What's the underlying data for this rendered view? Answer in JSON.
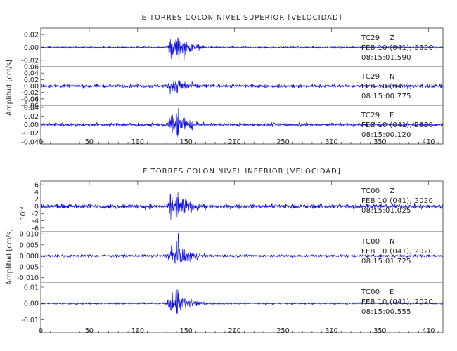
{
  "chart_data": [
    {
      "type": "line",
      "title": "E TORRES COLON NIVEL SUPERIOR [VELOCIDAD]",
      "ylabel": "Amplitud [cm/s]",
      "xlim": [
        0,
        415
      ],
      "xticks": [
        "0",
        "50",
        "100",
        "150",
        "200",
        "250",
        "300",
        "350",
        "400"
      ],
      "series": [
        {
          "station": "TC29",
          "component": "Z",
          "date": "FEB 10 (041), 2020",
          "time": "08:15:01.590",
          "ylim": [
            -0.03,
            0.03
          ],
          "yticks": [
            "0.02",
            "0.00",
            "-0.02"
          ],
          "event_start": 128,
          "peak_time": 142,
          "peak_amplitude": 0.028,
          "noise_amplitude": 0.002
        },
        {
          "station": "TC29",
          "component": "N",
          "date": "FEB 10 (041), 2020",
          "time": "08:15:00.775",
          "ylim": [
            -0.06,
            0.06
          ],
          "yticks": [
            "0.06",
            "0.04",
            "0.02",
            "0.00",
            "-0.02",
            "-0.04",
            "-0.06"
          ],
          "event_start": 128,
          "peak_time": 142,
          "peak_amplitude": 0.045,
          "noise_amplitude": 0.008
        },
        {
          "station": "TC29",
          "component": "E",
          "date": "FEB 10 (041), 2020",
          "time": "08:15:00.120",
          "ylim": [
            -0.045,
            0.045
          ],
          "yticks": [
            "0.06",
            "0.04",
            "0.02",
            "0.00",
            "-0.02",
            "-0.04"
          ],
          "event_start": 128,
          "peak_time": 142,
          "peak_amplitude": 0.042,
          "noise_amplitude": 0.006
        }
      ]
    },
    {
      "type": "line",
      "title": "E TORRES COLON NIVEL INFERIOR [VELOCIDAD]",
      "ylabel": "Amplitud [cm/s]",
      "yscale_label": "10^-3",
      "xlim": [
        0,
        415
      ],
      "xticks": [
        "0",
        "50",
        "100",
        "150",
        "200",
        "250",
        "300",
        "350",
        "400"
      ],
      "series": [
        {
          "station": "TC00",
          "component": "Z",
          "date": "FEB 10 (041), 2020",
          "time": "08:15:01.025",
          "ylim": [
            -7,
            7
          ],
          "yticks": [
            "6",
            "4",
            "2",
            "0",
            "-2",
            "-4",
            "-6"
          ],
          "event_start": 128,
          "peak_time": 142,
          "peak_amplitude": 6,
          "noise_amplitude": 1
        },
        {
          "station": "TC00",
          "component": "N",
          "date": "FEB 10 (041), 2020",
          "time": "08:15:01.725",
          "ylim": [
            -0.012,
            0.011
          ],
          "yticks": [
            "0.010",
            "0.005",
            "0.000",
            "-0.005",
            "-0.010"
          ],
          "event_start": 128,
          "peak_time": 142,
          "peak_amplitude": 0.01,
          "noise_amplitude": 0.0009
        },
        {
          "station": "TC00",
          "component": "E",
          "date": "FEB 10 (041), 2020",
          "time": "08:15:00.555",
          "ylim": [
            -0.018,
            0.013
          ],
          "yticks": [
            "0.01",
            "0.00",
            "-0.01"
          ],
          "event_start": 128,
          "peak_time": 142,
          "peak_amplitude": 0.012,
          "noise_amplitude": 0.0008
        }
      ]
    }
  ]
}
